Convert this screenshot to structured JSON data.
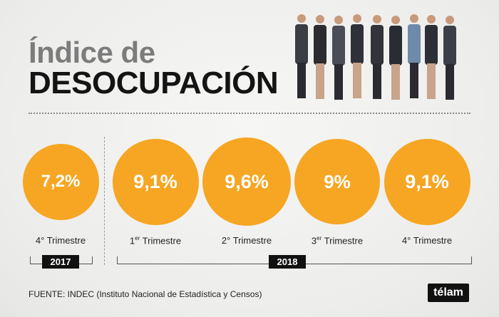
{
  "header": {
    "title_line1": "Índice de",
    "title_line2": "DESOCUPACIÓN"
  },
  "chart_data": {
    "type": "bubble",
    "categories": [
      "4° Trimestre 2017",
      "1er Trimestre 2018",
      "2° Trimestre 2018",
      "3er Trimestre 2018",
      "4° Trimestre 2018"
    ],
    "values": [
      7.2,
      9.1,
      9.6,
      9.0,
      9.1
    ],
    "value_labels": [
      "7,2%",
      "9,1%",
      "9,6%",
      "9%",
      "9,1%"
    ],
    "quarter_labels": [
      {
        "main": "4° Trimestre",
        "sup": ""
      },
      {
        "main": "1",
        "sup": "er",
        "rest": " Trimestre"
      },
      {
        "main": "2° Trimestre",
        "sup": ""
      },
      {
        "main": "3",
        "sup": "er",
        "rest": " Trimestre"
      },
      {
        "main": "4° Trimestre",
        "sup": ""
      }
    ],
    "years": [
      "2017",
      "2018"
    ],
    "color": "#f6a623"
  },
  "footer": {
    "source": "FUENTE: INDEC (Instituto Nacional de Estadística y Censos)",
    "logo": "télam"
  }
}
